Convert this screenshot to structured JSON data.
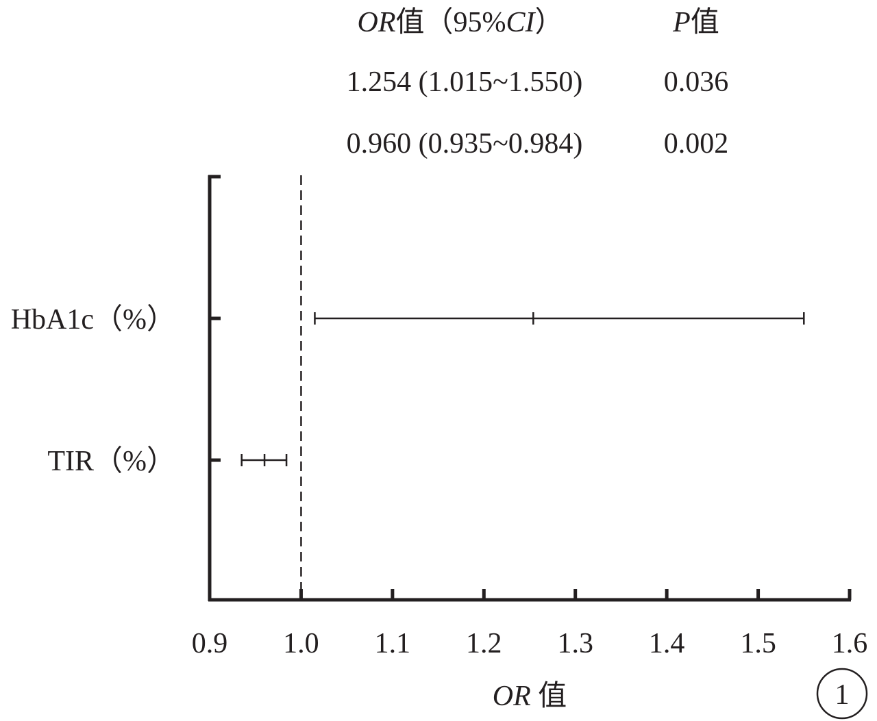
{
  "chart_data": {
    "type": "forest",
    "x_axis": {
      "label_italic": "OR",
      "label_suffix": " 值",
      "range": [
        0.9,
        1.6
      ],
      "ticks": [
        0.9,
        1.0,
        1.1,
        1.2,
        1.3,
        1.4,
        1.5,
        1.6
      ],
      "tick_labels": [
        "0.9",
        "1.0",
        "1.1",
        "1.2",
        "1.3",
        "1.4",
        "1.5",
        "1.6"
      ]
    },
    "reference_line": 1.0,
    "header": {
      "or_italic": "OR",
      "or_mid": "值（95%",
      "ci_italic": "CI",
      "or_end": "）",
      "p_italic": "P",
      "p_end": "值"
    },
    "rows": [
      {
        "label": "HbA1c（%）",
        "or": 1.254,
        "lower": 1.015,
        "upper": 1.55,
        "or_text": "1.254 (1.015~1.550)",
        "p_text": "0.036"
      },
      {
        "label": "TIR（%）",
        "or": 0.96,
        "lower": 0.935,
        "upper": 0.984,
        "or_text": "0.960 (0.935~0.984)",
        "p_text": "0.002"
      }
    ],
    "panel_label": "1"
  }
}
